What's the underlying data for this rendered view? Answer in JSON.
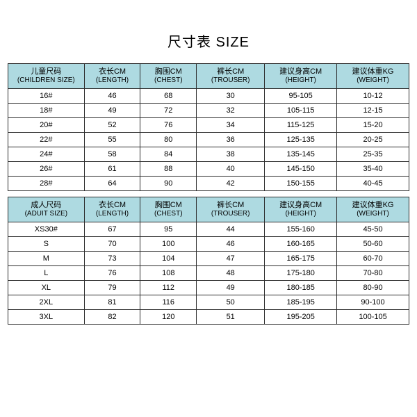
{
  "title": "尺寸表 SIZE",
  "header_bg": "#aedae1",
  "row_bg": "#ffffff",
  "border_color": "#2b2b2b",
  "tables": [
    {
      "columns": [
        {
          "line1": "儿童尺码",
          "line2": "(CHILDREN SIZE)"
        },
        {
          "line1": "衣长CM",
          "line2": "(LENGTH)"
        },
        {
          "line1": "胸围CM",
          "line2": "(CHEST)"
        },
        {
          "line1": "裤长CM",
          "line2": "(TROUSER)"
        },
        {
          "line1": "建议身高CM",
          "line2": "(HEIGHT)"
        },
        {
          "line1": "建议体重KG",
          "line2": "(WEIGHT)"
        }
      ],
      "rows": [
        [
          "16#",
          "46",
          "68",
          "30",
          "95-105",
          "10-12"
        ],
        [
          "18#",
          "49",
          "72",
          "32",
          "105-115",
          "12-15"
        ],
        [
          "20#",
          "52",
          "76",
          "34",
          "115-125",
          "15-20"
        ],
        [
          "22#",
          "55",
          "80",
          "36",
          "125-135",
          "20-25"
        ],
        [
          "24#",
          "58",
          "84",
          "38",
          "135-145",
          "25-35"
        ],
        [
          "26#",
          "61",
          "88",
          "40",
          "145-150",
          "35-40"
        ],
        [
          "28#",
          "64",
          "90",
          "42",
          "150-155",
          "40-45"
        ]
      ]
    },
    {
      "columns": [
        {
          "line1": "成人尺码",
          "line2": "(ADUIT SIZE)"
        },
        {
          "line1": "衣长CM",
          "line2": "(LENGTH)"
        },
        {
          "line1": "胸围CM",
          "line2": "(CHEST)"
        },
        {
          "line1": "裤长CM",
          "line2": "(TROUSER)"
        },
        {
          "line1": "建议身高CM",
          "line2": "(HEIGHT)"
        },
        {
          "line1": "建议体重KG",
          "line2": "(WEIGHT)"
        }
      ],
      "rows": [
        [
          "XS30#",
          "67",
          "95",
          "44",
          "155-160",
          "45-50"
        ],
        [
          "S",
          "70",
          "100",
          "46",
          "160-165",
          "50-60"
        ],
        [
          "M",
          "73",
          "104",
          "47",
          "165-175",
          "60-70"
        ],
        [
          "L",
          "76",
          "108",
          "48",
          "175-180",
          "70-80"
        ],
        [
          "XL",
          "79",
          "112",
          "49",
          "180-185",
          "80-90"
        ],
        [
          "2XL",
          "81",
          "116",
          "50",
          "185-195",
          "90-100"
        ],
        [
          "3XL",
          "82",
          "120",
          "51",
          "195-205",
          "100-105"
        ]
      ]
    }
  ]
}
